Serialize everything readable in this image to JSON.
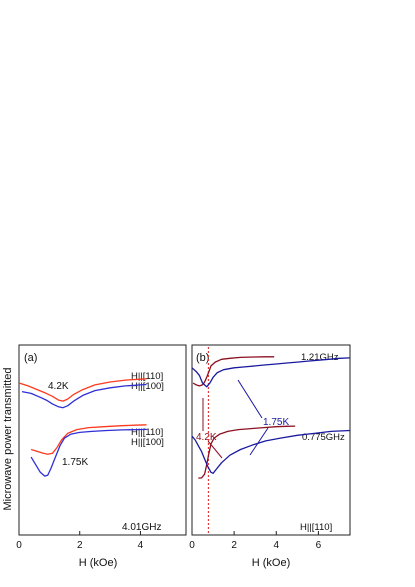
{
  "chart_data": [
    {
      "type": "line",
      "panel_label": "(a)",
      "xlabel": "H (kOe)",
      "ylabel": "Microwave power transmitted",
      "xlim": [
        0,
        5.5
      ],
      "ylim": [
        0,
        1
      ],
      "x_ticks": [
        0,
        2,
        4
      ],
      "y_ticks": false,
      "frequency_label": "4.01GHz",
      "temp_labels": [
        "4.2K",
        "1.75K"
      ],
      "colors": {
        "h110": "#ff3a1e",
        "h100": "#2f2fd6"
      },
      "series": [
        {
          "name": "H||[110]",
          "group": "4.2K",
          "color": "#ff3a1e",
          "x": [
            0,
            0.3,
            0.6,
            0.9,
            1.1,
            1.3,
            1.45,
            1.6,
            1.8,
            2.1,
            2.5,
            3.0,
            3.5,
            4.0,
            4.2
          ],
          "y": [
            0.8,
            0.785,
            0.765,
            0.745,
            0.73,
            0.71,
            0.705,
            0.715,
            0.74,
            0.765,
            0.79,
            0.805,
            0.815,
            0.82,
            0.822
          ]
        },
        {
          "name": "H||[100]",
          "group": "4.2K",
          "color": "#2f2fd6",
          "x": [
            0.1,
            0.4,
            0.7,
            0.9,
            1.1,
            1.3,
            1.45,
            1.6,
            1.8,
            2.1,
            2.5,
            3.0,
            3.5,
            4.0,
            4.2
          ],
          "y": [
            0.755,
            0.745,
            0.725,
            0.71,
            0.69,
            0.675,
            0.67,
            0.68,
            0.705,
            0.735,
            0.76,
            0.775,
            0.785,
            0.79,
            0.792
          ]
        },
        {
          "name": "H||[110]",
          "group": "1.75K",
          "color": "#ff3a1e",
          "x": [
            0.4,
            0.6,
            0.8,
            0.95,
            1.1,
            1.25,
            1.4,
            1.6,
            1.9,
            2.3,
            2.8,
            3.3,
            3.8,
            4.2
          ],
          "y": [
            0.45,
            0.44,
            0.43,
            0.425,
            0.43,
            0.46,
            0.5,
            0.535,
            0.555,
            0.565,
            0.57,
            0.575,
            0.578,
            0.58
          ]
        },
        {
          "name": "H||[100]",
          "group": "1.75K",
          "color": "#2f2fd6",
          "x": [
            0.4,
            0.55,
            0.7,
            0.85,
            0.95,
            1.05,
            1.2,
            1.35,
            1.5,
            1.7,
            2.0,
            2.4,
            2.9,
            3.4,
            3.9,
            4.2
          ],
          "y": [
            0.41,
            0.37,
            0.33,
            0.31,
            0.315,
            0.35,
            0.41,
            0.47,
            0.51,
            0.53,
            0.54,
            0.545,
            0.55,
            0.553,
            0.555,
            0.556
          ]
        }
      ]
    },
    {
      "type": "line",
      "panel_label": "(b)",
      "xlabel": "H (kOe)",
      "xlim": [
        0,
        7.5
      ],
      "ylim": [
        0,
        1
      ],
      "x_ticks": [
        0,
        2,
        4,
        6
      ],
      "y_ticks": false,
      "frequency_labels": [
        "1.21GHz",
        "0.775GHz"
      ],
      "temp_labels": [
        "1.75K",
        "4.2K"
      ],
      "field_label": "H||[110]",
      "marker_x": 0.78,
      "colors": {
        "t175": "#1a1aa0",
        "t42": "#8b1020",
        "marker": "#e63a3a"
      },
      "series": [
        {
          "group": "1.21GHz 4.2K",
          "color": "#8b1020",
          "x": [
            0.05,
            0.2,
            0.35,
            0.5,
            0.6,
            0.7,
            0.8,
            0.9,
            1.1,
            1.4,
            1.8,
            2.3,
            2.9,
            3.5,
            3.9
          ],
          "y": [
            0.8,
            0.79,
            0.785,
            0.79,
            0.805,
            0.83,
            0.86,
            0.89,
            0.91,
            0.925,
            0.93,
            0.935,
            0.937,
            0.938,
            0.938
          ]
        },
        {
          "group": "1.21GHz 1.75K",
          "color": "#1a1aa0",
          "x": [
            0,
            0.1,
            0.2,
            0.35,
            0.5,
            0.7,
            0.85,
            1.0,
            1.2,
            1.5,
            2.0,
            2.5,
            3.0,
            3.5,
            4.0,
            4.5,
            5.0,
            5.5,
            6.0,
            6.5,
            7.0,
            7.5
          ],
          "y": [
            0.88,
            0.87,
            0.86,
            0.84,
            0.8,
            0.78,
            0.8,
            0.83,
            0.855,
            0.87,
            0.88,
            0.885,
            0.89,
            0.895,
            0.9,
            0.905,
            0.91,
            0.915,
            0.92,
            0.925,
            0.93,
            0.932
          ]
        },
        {
          "group": "0.775GHz 4.2K",
          "color": "#8b1020",
          "x": [
            0.3,
            0.45,
            0.6,
            0.7,
            0.8,
            0.9,
            1.05,
            1.3,
            1.7,
            2.2,
            2.8,
            3.4,
            4.0,
            4.5,
            4.9
          ],
          "y": [
            0.3,
            0.3,
            0.32,
            0.37,
            0.43,
            0.48,
            0.51,
            0.53,
            0.545,
            0.555,
            0.56,
            0.565,
            0.57,
            0.572,
            0.573
          ]
        },
        {
          "group": "0.775GHz 1.75K",
          "color": "#1a1aa0",
          "x": [
            0,
            0.15,
            0.3,
            0.45,
            0.6,
            0.75,
            0.9,
            1.0,
            1.15,
            1.4,
            1.8,
            2.3,
            2.9,
            3.5,
            4.2,
            5.0,
            5.8,
            6.6,
            7.5
          ],
          "y": [
            0.52,
            0.5,
            0.47,
            0.44,
            0.4,
            0.36,
            0.33,
            0.325,
            0.345,
            0.38,
            0.42,
            0.45,
            0.475,
            0.495,
            0.51,
            0.525,
            0.535,
            0.545,
            0.55
          ]
        }
      ]
    }
  ]
}
